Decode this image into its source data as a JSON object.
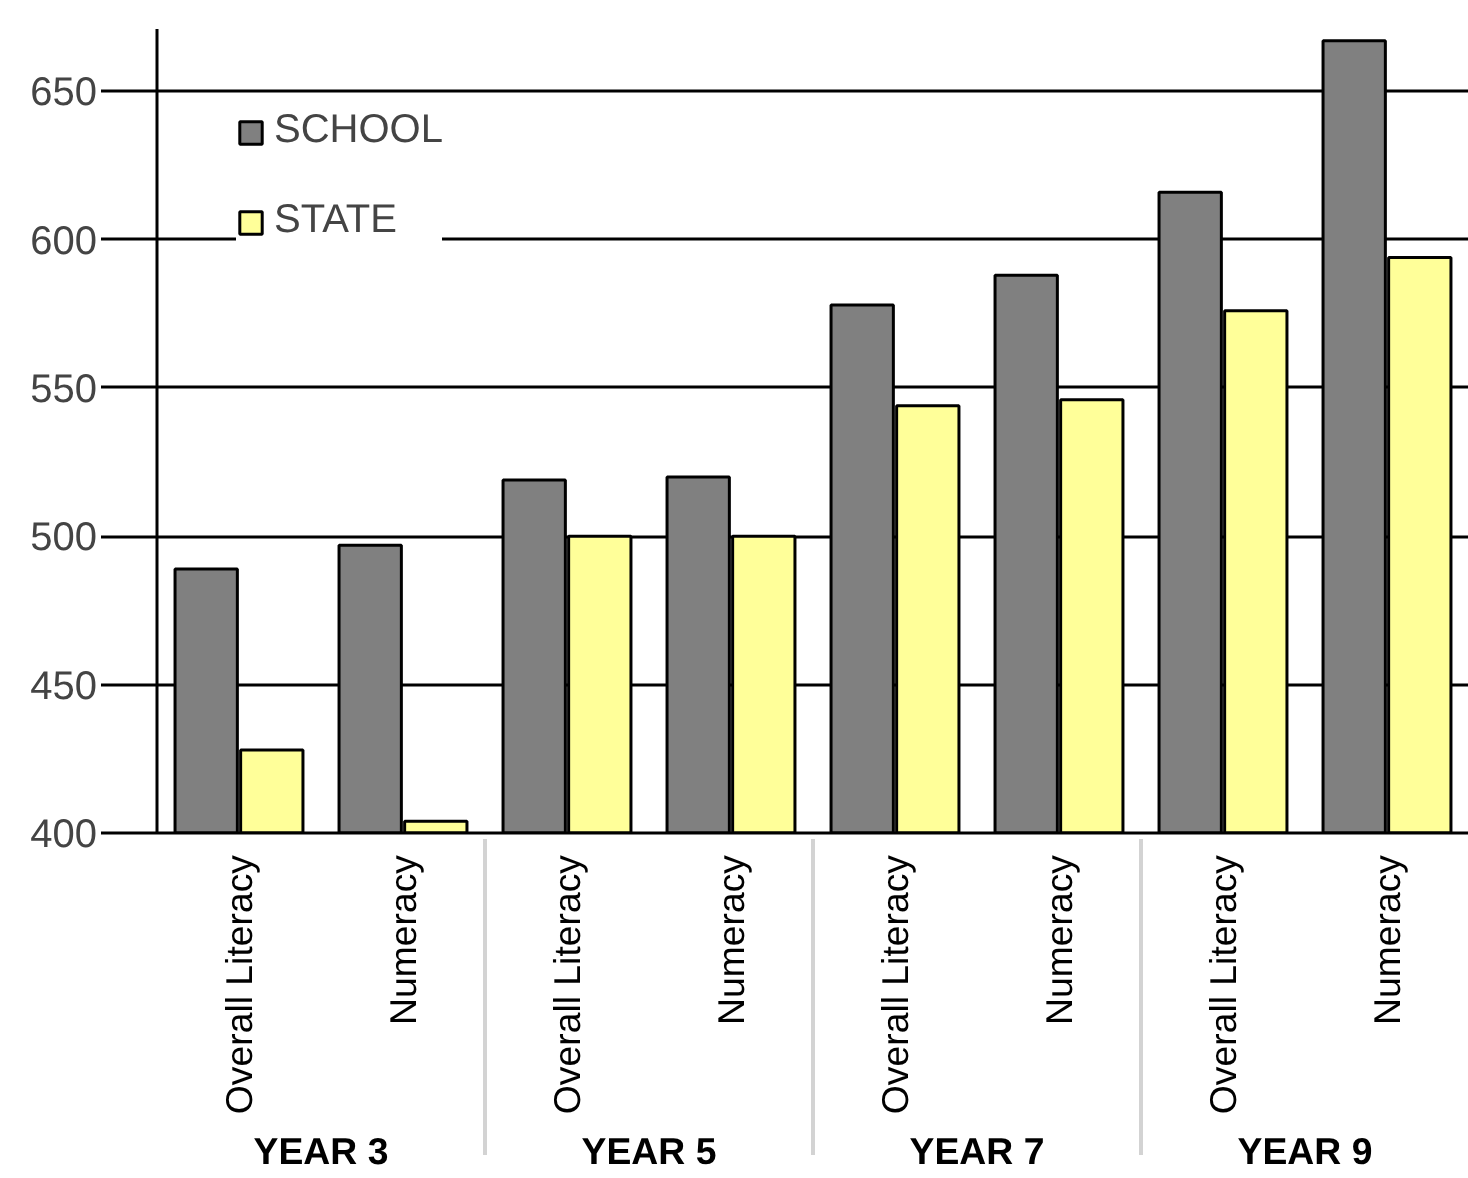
{
  "chart_data": {
    "type": "bar",
    "categories": [
      "Overall Literacy",
      "Numeracy",
      "Overall Literacy",
      "Numeracy",
      "Overall Literacy",
      "Numeracy",
      "Overall Literacy",
      "Numeracy"
    ],
    "annotations": [
      "YEAR 3",
      "YEAR 5",
      "YEAR 7",
      "YEAR 9"
    ],
    "series": [
      {
        "name": "SCHOOL",
        "color": "#808080",
        "values": [
          489,
          497,
          519,
          520,
          578,
          588,
          616,
          667
        ]
      },
      {
        "name": "STATE",
        "color": "#ffff99",
        "values": [
          428,
          404,
          500,
          500,
          544,
          546,
          576,
          594
        ]
      }
    ],
    "ylim": [
      400,
      671
    ],
    "yticks": [
      400,
      450,
      500,
      550,
      600,
      650
    ],
    "grid": "y",
    "legend": "top left"
  }
}
